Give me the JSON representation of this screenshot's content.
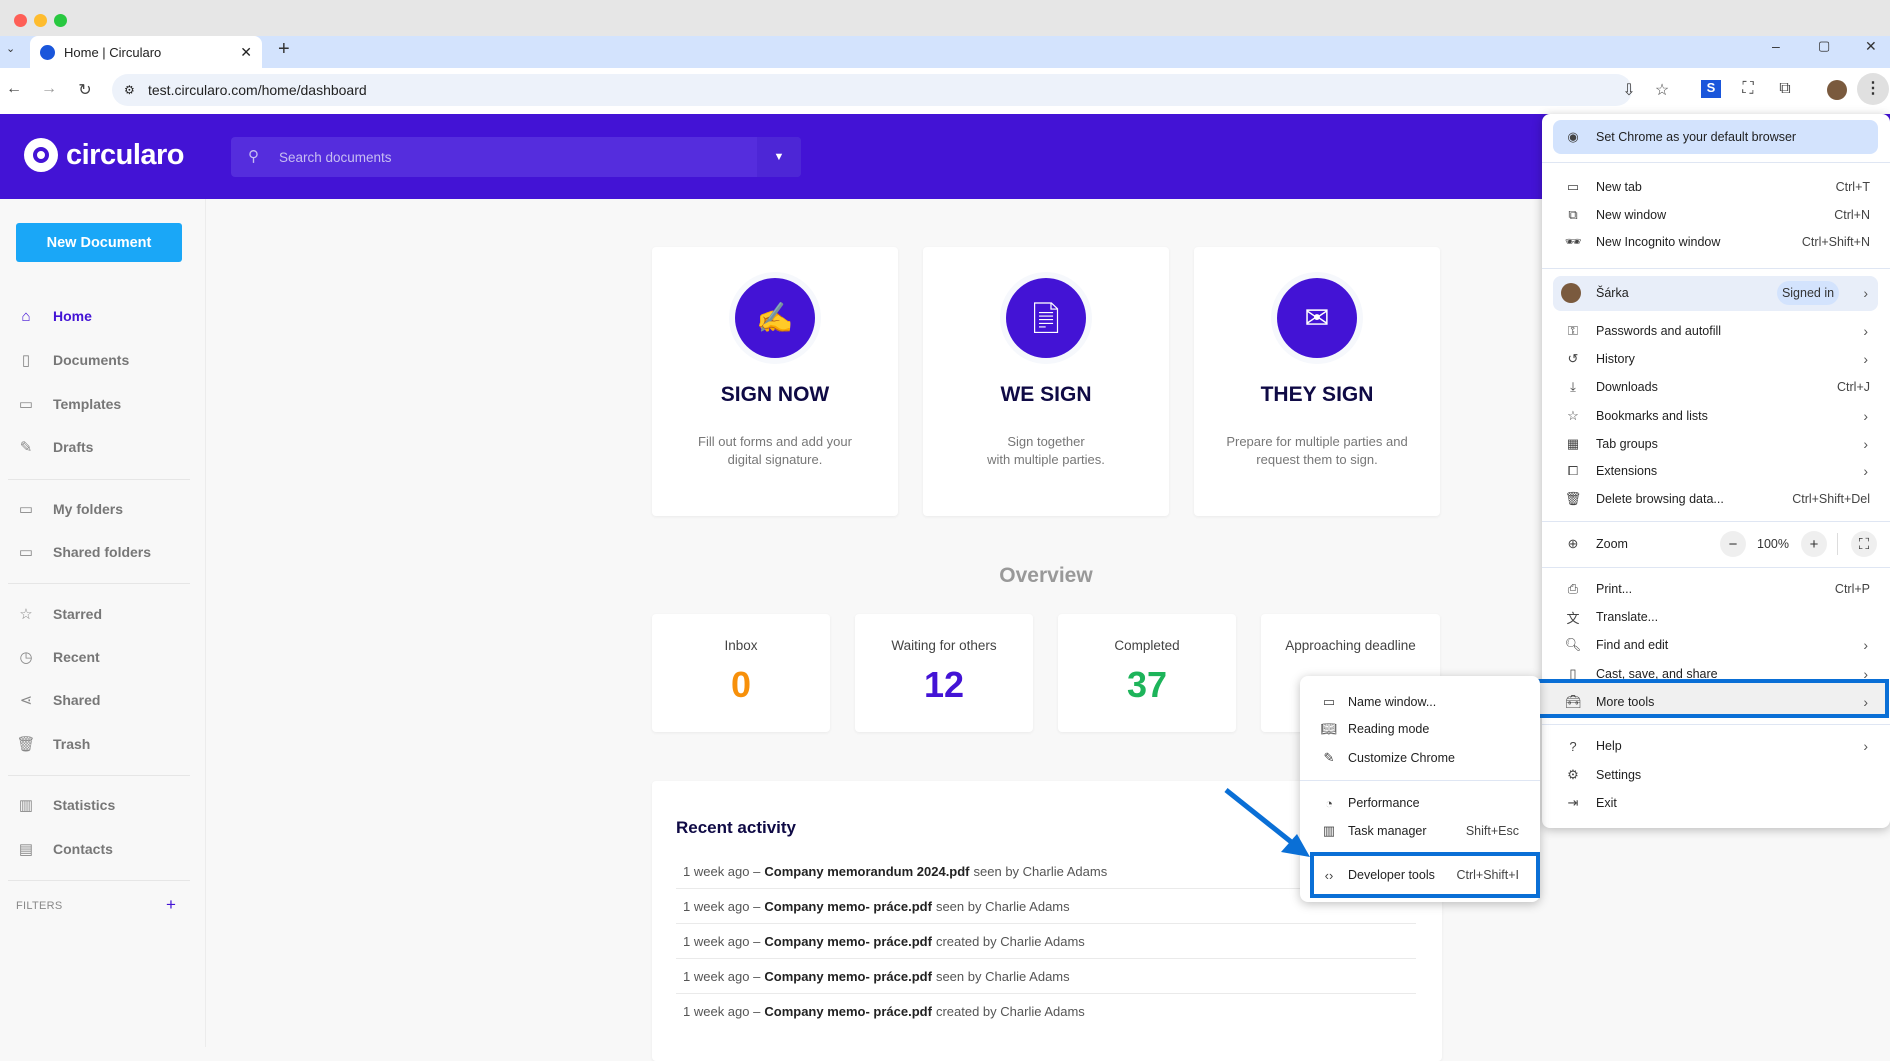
{
  "browser": {
    "tab_title": "Home | Circularo",
    "url": "test.circularo.com/home/dashboard"
  },
  "app": {
    "logo": "circularo",
    "search_placeholder": "Search documents",
    "new_document": "New Document",
    "filters_label": "FILTERS"
  },
  "sidebar": {
    "items": [
      {
        "label": "Home",
        "icon": "home-icon",
        "active": true
      },
      {
        "label": "Documents",
        "icon": "document-icon"
      },
      {
        "label": "Templates",
        "icon": "template-icon"
      },
      {
        "label": "Drafts",
        "icon": "edit-icon"
      },
      {
        "label": "My folders",
        "icon": "folder-icon"
      },
      {
        "label": "Shared folders",
        "icon": "shared-folder-icon"
      },
      {
        "label": "Starred",
        "icon": "star-icon"
      },
      {
        "label": "Recent",
        "icon": "clock-icon"
      },
      {
        "label": "Shared",
        "icon": "share-icon"
      },
      {
        "label": "Trash",
        "icon": "trash-icon"
      },
      {
        "label": "Statistics",
        "icon": "chart-icon"
      },
      {
        "label": "Contacts",
        "icon": "contact-card-icon"
      }
    ]
  },
  "actions": [
    {
      "title": "SIGN NOW",
      "desc1": "Fill out forms and add your",
      "desc2": "digital signature."
    },
    {
      "title": "WE SIGN",
      "desc1": "Sign together",
      "desc2": "with multiple parties."
    },
    {
      "title": "THEY SIGN",
      "desc1": "Prepare for multiple parties and",
      "desc2": "request them to sign."
    }
  ],
  "overview": {
    "title": "Overview",
    "stats": [
      {
        "label": "Inbox",
        "value": "0",
        "color": "#f7900a"
      },
      {
        "label": "Waiting for others",
        "value": "12",
        "color": "#4313d5"
      },
      {
        "label": "Completed",
        "value": "37",
        "color": "#1db45a"
      },
      {
        "label": "Approaching deadline",
        "value": "",
        "color": "#c0124f"
      }
    ]
  },
  "recent": {
    "title": "Recent activity",
    "rows": [
      {
        "time": "1 week ago",
        "sep": "–",
        "file": "Company memorandum 2024.pdf",
        "action": "seen by Charlie Adams"
      },
      {
        "time": "1 week ago",
        "sep": "–",
        "file": "Company memo- práce.pdf",
        "action": "seen by Charlie Adams"
      },
      {
        "time": "1 week ago",
        "sep": "–",
        "file": "Company memo- práce.pdf",
        "action": "created by Charlie Adams"
      },
      {
        "time": "1 week ago",
        "sep": "–",
        "file": "Company memo- práce.pdf",
        "action": "seen by Charlie Adams"
      },
      {
        "time": "1 week ago",
        "sep": "–",
        "file": "Company memo- práce.pdf",
        "action": "created by Charlie Adams"
      }
    ]
  },
  "chrome_menu": {
    "default_browser": "Set Chrome as your default browser",
    "new_tab": "New tab",
    "new_tab_sc": "Ctrl+T",
    "new_window": "New window",
    "new_window_sc": "Ctrl+N",
    "incognito": "New Incognito window",
    "incognito_sc": "Ctrl+Shift+N",
    "profile": "Šárka",
    "signed_in": "Signed in",
    "passwords": "Passwords and autofill",
    "history": "History",
    "downloads": "Downloads",
    "downloads_sc": "Ctrl+J",
    "bookmarks": "Bookmarks and lists",
    "tab_groups": "Tab groups",
    "extensions": "Extensions",
    "delete": "Delete browsing data...",
    "delete_sc": "Ctrl+Shift+Del",
    "zoom": "Zoom",
    "zoom_value": "100%",
    "print": "Print...",
    "print_sc": "Ctrl+P",
    "translate": "Translate...",
    "find": "Find and edit",
    "cast": "Cast, save, and share",
    "more_tools": "More tools",
    "help": "Help",
    "settings": "Settings",
    "exit": "Exit"
  },
  "more_tools_menu": {
    "name_window": "Name window...",
    "reading_mode": "Reading mode",
    "customize": "Customize Chrome",
    "performance": "Performance",
    "task_manager": "Task manager",
    "task_manager_sc": "Shift+Esc",
    "developer_tools": "Developer tools",
    "developer_tools_sc": "Ctrl+Shift+I"
  },
  "annotation_color": "#0a6fd6"
}
